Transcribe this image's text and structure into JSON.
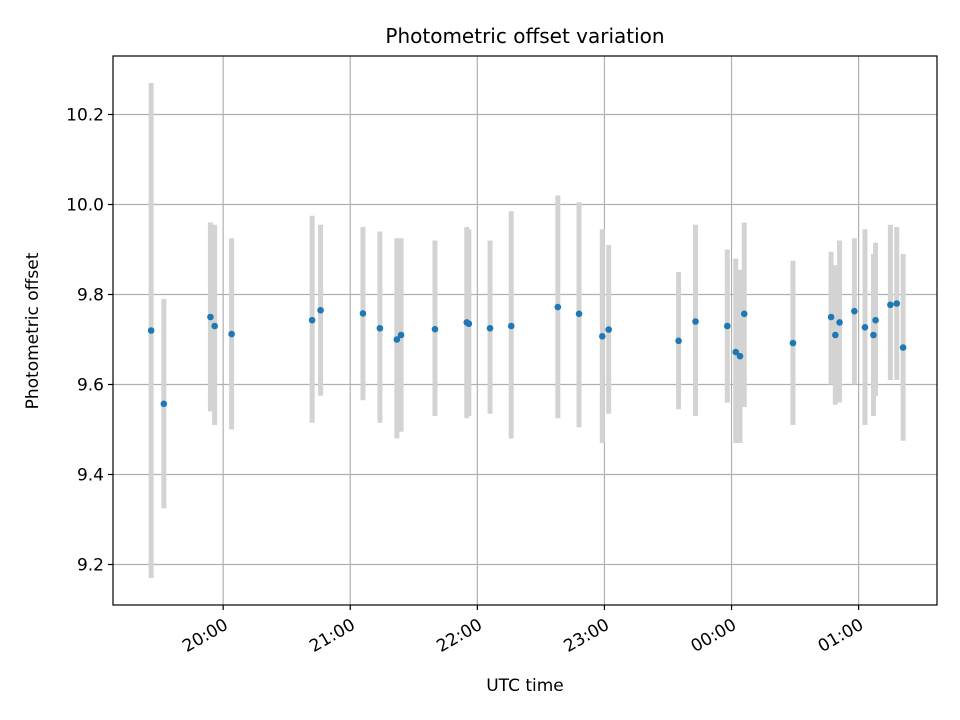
{
  "chart_data": {
    "type": "scatter",
    "title": "Photometric offset variation",
    "xlabel": "UTC time",
    "ylabel": "Photometric offset",
    "x_axis": "time",
    "xlim": [
      "19:08",
      "25:37"
    ],
    "ylim": [
      9.11,
      10.33
    ],
    "grid": true,
    "x_ticks": [
      {
        "time": "20:00",
        "label": "20:00"
      },
      {
        "time": "21:00",
        "label": "21:00"
      },
      {
        "time": "22:00",
        "label": "22:00"
      },
      {
        "time": "23:00",
        "label": "23:00"
      },
      {
        "time": "24:00",
        "label": "00:00"
      },
      {
        "time": "25:00",
        "label": "01:00"
      }
    ],
    "y_ticks": [
      9.2,
      9.4,
      9.6,
      9.8,
      10.0,
      10.2
    ],
    "colors": {
      "points": "#1f77b4",
      "error_bars": "#d3d3d3",
      "grid": "#b0b0b0"
    },
    "points": [
      {
        "time": "19:26",
        "y": 9.72,
        "yerr_low": 9.17,
        "yerr_high": 10.27
      },
      {
        "time": "19:32",
        "y": 9.557,
        "yerr_low": 9.325,
        "yerr_high": 9.79
      },
      {
        "time": "19:54",
        "y": 9.75,
        "yerr_low": 9.54,
        "yerr_high": 9.96
      },
      {
        "time": "19:56",
        "y": 9.73,
        "yerr_low": 9.51,
        "yerr_high": 9.955
      },
      {
        "time": "20:04",
        "y": 9.712,
        "yerr_low": 9.5,
        "yerr_high": 9.925
      },
      {
        "time": "20:42",
        "y": 9.743,
        "yerr_low": 9.515,
        "yerr_high": 9.975
      },
      {
        "time": "20:46",
        "y": 9.765,
        "yerr_low": 9.575,
        "yerr_high": 9.955
      },
      {
        "time": "21:06",
        "y": 9.758,
        "yerr_low": 9.565,
        "yerr_high": 9.95
      },
      {
        "time": "21:14",
        "y": 9.725,
        "yerr_low": 9.515,
        "yerr_high": 9.94
      },
      {
        "time": "21:22",
        "y": 9.7,
        "yerr_low": 9.48,
        "yerr_high": 9.925
      },
      {
        "time": "21:24",
        "y": 9.71,
        "yerr_low": 9.495,
        "yerr_high": 9.925
      },
      {
        "time": "21:40",
        "y": 9.723,
        "yerr_low": 9.53,
        "yerr_high": 9.92
      },
      {
        "time": "21:55",
        "y": 9.738,
        "yerr_low": 9.525,
        "yerr_high": 9.95
      },
      {
        "time": "21:56",
        "y": 9.735,
        "yerr_low": 9.53,
        "yerr_high": 9.945
      },
      {
        "time": "22:06",
        "y": 9.725,
        "yerr_low": 9.535,
        "yerr_high": 9.92
      },
      {
        "time": "22:16",
        "y": 9.73,
        "yerr_low": 9.48,
        "yerr_high": 9.985
      },
      {
        "time": "22:38",
        "y": 9.772,
        "yerr_low": 9.525,
        "yerr_high": 10.02
      },
      {
        "time": "22:48",
        "y": 9.757,
        "yerr_low": 9.505,
        "yerr_high": 10.005
      },
      {
        "time": "22:59",
        "y": 9.707,
        "yerr_low": 9.47,
        "yerr_high": 9.945
      },
      {
        "time": "23:02",
        "y": 9.722,
        "yerr_low": 9.535,
        "yerr_high": 9.91
      },
      {
        "time": "23:35",
        "y": 9.697,
        "yerr_low": 9.545,
        "yerr_high": 9.85
      },
      {
        "time": "23:43",
        "y": 9.74,
        "yerr_low": 9.53,
        "yerr_high": 9.955
      },
      {
        "time": "23:58",
        "y": 9.73,
        "yerr_low": 9.56,
        "yerr_high": 9.9
      },
      {
        "time": "24:02",
        "y": 9.672,
        "yerr_low": 9.47,
        "yerr_high": 9.88
      },
      {
        "time": "24:04",
        "y": 9.663,
        "yerr_low": 9.47,
        "yerr_high": 9.855
      },
      {
        "time": "24:06",
        "y": 9.757,
        "yerr_low": 9.55,
        "yerr_high": 9.96
      },
      {
        "time": "24:29",
        "y": 9.692,
        "yerr_low": 9.51,
        "yerr_high": 9.875
      },
      {
        "time": "24:47",
        "y": 9.75,
        "yerr_low": 9.6,
        "yerr_high": 9.895
      },
      {
        "time": "24:49",
        "y": 9.71,
        "yerr_low": 9.555,
        "yerr_high": 9.865
      },
      {
        "time": "24:51",
        "y": 9.738,
        "yerr_low": 9.56,
        "yerr_high": 9.92
      },
      {
        "time": "24:58",
        "y": 9.763,
        "yerr_low": 9.6,
        "yerr_high": 9.925
      },
      {
        "time": "25:03",
        "y": 9.727,
        "yerr_low": 9.51,
        "yerr_high": 9.945
      },
      {
        "time": "25:07",
        "y": 9.71,
        "yerr_low": 9.53,
        "yerr_high": 9.89
      },
      {
        "time": "25:08",
        "y": 9.743,
        "yerr_low": 9.575,
        "yerr_high": 9.915
      },
      {
        "time": "25:15",
        "y": 9.777,
        "yerr_low": 9.61,
        "yerr_high": 9.955
      },
      {
        "time": "25:18",
        "y": 9.78,
        "yerr_low": 9.61,
        "yerr_high": 9.95
      },
      {
        "time": "25:21",
        "y": 9.682,
        "yerr_low": 9.475,
        "yerr_high": 9.89
      }
    ]
  }
}
